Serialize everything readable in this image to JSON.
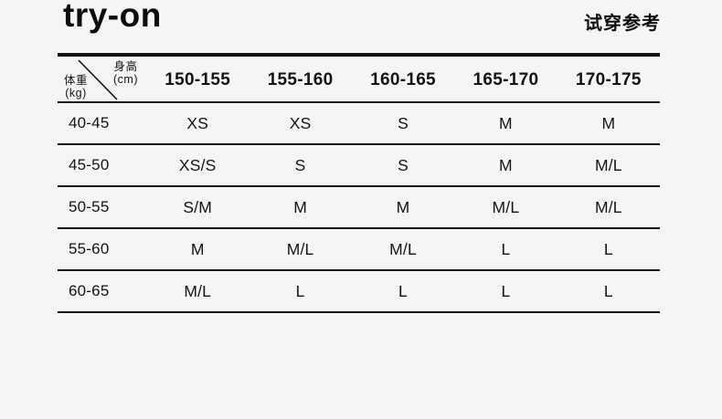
{
  "page": {
    "title": "try-on",
    "subtitle": "试穿参考",
    "background_color": "#f5f5f6",
    "text_color": "#141414",
    "line_color": "#131313"
  },
  "chart_data": {
    "type": "table",
    "title": "try-on",
    "subtitle": "试穿参考",
    "column_axis": {
      "label": "身高",
      "unit": "(cm)"
    },
    "row_axis": {
      "label": "体重",
      "unit": "(kg)"
    },
    "columns": [
      "150-155",
      "155-160",
      "160-165",
      "165-170",
      "170-175"
    ],
    "rows": [
      {
        "label": "40-45",
        "values": [
          "XS",
          "XS",
          "S",
          "M",
          "M"
        ]
      },
      {
        "label": "45-50",
        "values": [
          "XS/S",
          "S",
          "S",
          "M",
          "M/L"
        ]
      },
      {
        "label": "50-55",
        "values": [
          "S/M",
          "M",
          "M",
          "M/L",
          "M/L"
        ]
      },
      {
        "label": "55-60",
        "values": [
          "M",
          "M/L",
          "M/L",
          "L",
          "L"
        ]
      },
      {
        "label": "60-65",
        "values": [
          "M/L",
          "L",
          "L",
          "L",
          "L"
        ]
      }
    ]
  }
}
